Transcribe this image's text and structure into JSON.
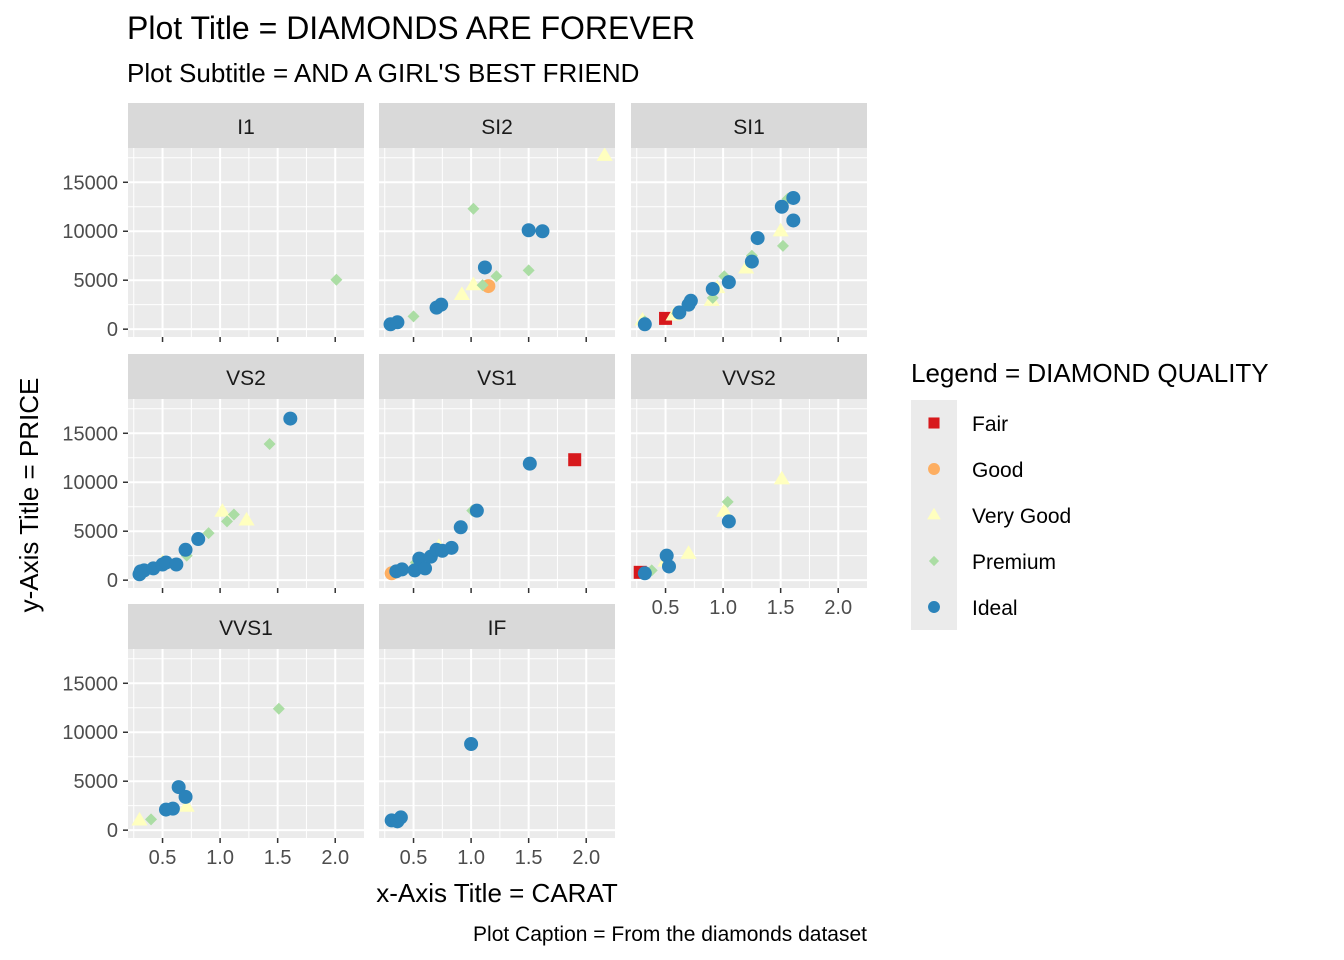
{
  "chart_data": {
    "type": "scatter",
    "title": "Plot Title = DIAMONDS ARE FOREVER",
    "subtitle": "Plot Subtitle = AND A GIRL'S BEST FRIEND",
    "xlabel": "x-Axis Title = CARAT",
    "ylabel": "y-Axis Title = PRICE",
    "caption": "Plot Caption = From the diamonds dataset",
    "legend_title": "Legend = DIAMOND QUALITY",
    "legend_position": "right",
    "xlim": [
      0.2,
      2.25
    ],
    "ylim": [
      -800,
      18500
    ],
    "x_ticks": [
      0.5,
      1.0,
      1.5,
      2.0
    ],
    "x_tick_labels": [
      "0.5",
      "1.0",
      "1.5",
      "2.0"
    ],
    "y_ticks": [
      0,
      5000,
      10000,
      15000
    ],
    "y_tick_labels": [
      "0",
      "5000",
      "10000",
      "15000"
    ],
    "grid": true,
    "series": [
      {
        "name": "Fair",
        "color": "#D7191C",
        "shape": "square"
      },
      {
        "name": "Good",
        "color": "#FDAE61",
        "shape": "circle"
      },
      {
        "name": "Very Good",
        "color": "#FFFFBF",
        "shape": "triangle"
      },
      {
        "name": "Premium",
        "color": "#ABDDA4",
        "shape": "diamond"
      },
      {
        "name": "Ideal",
        "color": "#2B83BA",
        "shape": "circle"
      }
    ],
    "facets": [
      {
        "label": "I1",
        "points": [
          {
            "x": 2.01,
            "y": 5050,
            "s": "Premium"
          }
        ]
      },
      {
        "label": "SI2",
        "points": [
          {
            "x": 0.5,
            "y": 1300,
            "s": "Premium"
          },
          {
            "x": 1.02,
            "y": 12300,
            "s": "Premium"
          },
          {
            "x": 2.16,
            "y": 17700,
            "s": "Very Good"
          },
          {
            "x": 1.5,
            "y": 10100,
            "s": "Premium"
          },
          {
            "x": 1.5,
            "y": 6000,
            "s": "Premium"
          },
          {
            "x": 1.22,
            "y": 5400,
            "s": "Premium"
          },
          {
            "x": 1.1,
            "y": 4500,
            "s": "Premium"
          },
          {
            "x": 1.02,
            "y": 4500,
            "s": "Very Good"
          },
          {
            "x": 0.92,
            "y": 3500,
            "s": "Very Good"
          },
          {
            "x": 1.15,
            "y": 4400,
            "s": "Good"
          },
          {
            "x": 0.3,
            "y": 500,
            "s": "Ideal"
          },
          {
            "x": 0.36,
            "y": 700,
            "s": "Ideal"
          },
          {
            "x": 0.7,
            "y": 2200,
            "s": "Ideal"
          },
          {
            "x": 0.74,
            "y": 2500,
            "s": "Ideal"
          },
          {
            "x": 1.12,
            "y": 6300,
            "s": "Ideal"
          },
          {
            "x": 1.5,
            "y": 10100,
            "s": "Ideal"
          },
          {
            "x": 1.62,
            "y": 10000,
            "s": "Ideal"
          }
        ]
      },
      {
        "label": "SI1",
        "points": [
          {
            "x": 0.5,
            "y": 1100,
            "s": "Fair"
          },
          {
            "x": 0.32,
            "y": 800,
            "s": "Premium"
          },
          {
            "x": 0.6,
            "y": 1600,
            "s": "Premium"
          },
          {
            "x": 0.7,
            "y": 2400,
            "s": "Premium"
          },
          {
            "x": 0.91,
            "y": 3200,
            "s": "Premium"
          },
          {
            "x": 1.01,
            "y": 5400,
            "s": "Premium"
          },
          {
            "x": 1.25,
            "y": 7500,
            "s": "Premium"
          },
          {
            "x": 1.52,
            "y": 8500,
            "s": "Premium"
          },
          {
            "x": 1.56,
            "y": 13300,
            "s": "Premium"
          },
          {
            "x": 0.3,
            "y": 900,
            "s": "Very Good"
          },
          {
            "x": 0.57,
            "y": 1400,
            "s": "Very Good"
          },
          {
            "x": 0.9,
            "y": 2900,
            "s": "Very Good"
          },
          {
            "x": 0.95,
            "y": 4200,
            "s": "Very Good"
          },
          {
            "x": 1.2,
            "y": 6200,
            "s": "Very Good"
          },
          {
            "x": 1.5,
            "y": 10000,
            "s": "Very Good"
          },
          {
            "x": 0.32,
            "y": 500,
            "s": "Ideal"
          },
          {
            "x": 0.62,
            "y": 1700,
            "s": "Ideal"
          },
          {
            "x": 0.7,
            "y": 2500,
            "s": "Ideal"
          },
          {
            "x": 0.72,
            "y": 2900,
            "s": "Ideal"
          },
          {
            "x": 0.91,
            "y": 4100,
            "s": "Ideal"
          },
          {
            "x": 1.05,
            "y": 4800,
            "s": "Ideal"
          },
          {
            "x": 1.25,
            "y": 6900,
            "s": "Ideal"
          },
          {
            "x": 1.3,
            "y": 9300,
            "s": "Ideal"
          },
          {
            "x": 1.51,
            "y": 12500,
            "s": "Ideal"
          },
          {
            "x": 1.61,
            "y": 13400,
            "s": "Ideal"
          },
          {
            "x": 1.61,
            "y": 11100,
            "s": "Ideal"
          }
        ]
      },
      {
        "label": "VS2",
        "points": [
          {
            "x": 0.71,
            "y": 2500,
            "s": "Premium"
          },
          {
            "x": 0.9,
            "y": 4800,
            "s": "Premium"
          },
          {
            "x": 1.06,
            "y": 6000,
            "s": "Premium"
          },
          {
            "x": 1.12,
            "y": 6700,
            "s": "Premium"
          },
          {
            "x": 1.43,
            "y": 13900,
            "s": "Premium"
          },
          {
            "x": 1.02,
            "y": 7000,
            "s": "Very Good"
          },
          {
            "x": 1.23,
            "y": 6100,
            "s": "Very Good"
          },
          {
            "x": 0.5,
            "y": 1800,
            "s": "Very Good"
          },
          {
            "x": 0.3,
            "y": 600,
            "s": "Ideal"
          },
          {
            "x": 0.31,
            "y": 900,
            "s": "Ideal"
          },
          {
            "x": 0.34,
            "y": 1000,
            "s": "Ideal"
          },
          {
            "x": 0.42,
            "y": 1200,
            "s": "Ideal"
          },
          {
            "x": 0.5,
            "y": 1600,
            "s": "Ideal"
          },
          {
            "x": 0.53,
            "y": 1800,
            "s": "Ideal"
          },
          {
            "x": 0.62,
            "y": 1600,
            "s": "Ideal"
          },
          {
            "x": 0.7,
            "y": 3100,
            "s": "Ideal"
          },
          {
            "x": 0.81,
            "y": 4200,
            "s": "Ideal"
          },
          {
            "x": 1.61,
            "y": 16500,
            "s": "Ideal"
          }
        ]
      },
      {
        "label": "VS1",
        "points": [
          {
            "x": 1.9,
            "y": 12300,
            "s": "Fair"
          },
          {
            "x": 0.31,
            "y": 700,
            "s": "Good"
          },
          {
            "x": 0.52,
            "y": 1800,
            "s": "Premium"
          },
          {
            "x": 1.01,
            "y": 7100,
            "s": "Premium"
          },
          {
            "x": 0.72,
            "y": 3400,
            "s": "Very Good"
          },
          {
            "x": 0.35,
            "y": 900,
            "s": "Ideal"
          },
          {
            "x": 0.4,
            "y": 1100,
            "s": "Ideal"
          },
          {
            "x": 0.51,
            "y": 1000,
            "s": "Ideal"
          },
          {
            "x": 0.55,
            "y": 2200,
            "s": "Ideal"
          },
          {
            "x": 0.6,
            "y": 1200,
            "s": "Ideal"
          },
          {
            "x": 0.65,
            "y": 2400,
            "s": "Ideal"
          },
          {
            "x": 0.7,
            "y": 3100,
            "s": "Ideal"
          },
          {
            "x": 0.75,
            "y": 3000,
            "s": "Ideal"
          },
          {
            "x": 0.83,
            "y": 3300,
            "s": "Ideal"
          },
          {
            "x": 0.91,
            "y": 5400,
            "s": "Ideal"
          },
          {
            "x": 1.05,
            "y": 7100,
            "s": "Ideal"
          },
          {
            "x": 1.51,
            "y": 11900,
            "s": "Ideal"
          }
        ]
      },
      {
        "label": "VVS2",
        "points": [
          {
            "x": 0.28,
            "y": 800,
            "s": "Fair"
          },
          {
            "x": 0.38,
            "y": 1000,
            "s": "Premium"
          },
          {
            "x": 1.04,
            "y": 8000,
            "s": "Premium"
          },
          {
            "x": 0.5,
            "y": 1900,
            "s": "Very Good"
          },
          {
            "x": 0.7,
            "y": 2700,
            "s": "Very Good"
          },
          {
            "x": 1.01,
            "y": 7000,
            "s": "Very Good"
          },
          {
            "x": 1.51,
            "y": 10300,
            "s": "Very Good"
          },
          {
            "x": 0.32,
            "y": 700,
            "s": "Ideal"
          },
          {
            "x": 0.51,
            "y": 2500,
            "s": "Ideal"
          },
          {
            "x": 0.53,
            "y": 1400,
            "s": "Ideal"
          },
          {
            "x": 1.05,
            "y": 6000,
            "s": "Ideal"
          }
        ]
      },
      {
        "label": "VVS1",
        "points": [
          {
            "x": 0.3,
            "y": 1000,
            "s": "Very Good"
          },
          {
            "x": 0.4,
            "y": 1100,
            "s": "Premium"
          },
          {
            "x": 0.71,
            "y": 2400,
            "s": "Very Good"
          },
          {
            "x": 1.51,
            "y": 12400,
            "s": "Premium"
          },
          {
            "x": 0.53,
            "y": 2100,
            "s": "Ideal"
          },
          {
            "x": 0.59,
            "y": 2200,
            "s": "Ideal"
          },
          {
            "x": 0.64,
            "y": 4400,
            "s": "Ideal"
          },
          {
            "x": 0.7,
            "y": 3400,
            "s": "Ideal"
          }
        ]
      },
      {
        "label": "IF",
        "points": [
          {
            "x": 0.31,
            "y": 1000,
            "s": "Ideal"
          },
          {
            "x": 0.36,
            "y": 900,
            "s": "Ideal"
          },
          {
            "x": 0.39,
            "y": 1300,
            "s": "Ideal"
          },
          {
            "x": 1.0,
            "y": 8800,
            "s": "Ideal"
          }
        ]
      }
    ]
  }
}
